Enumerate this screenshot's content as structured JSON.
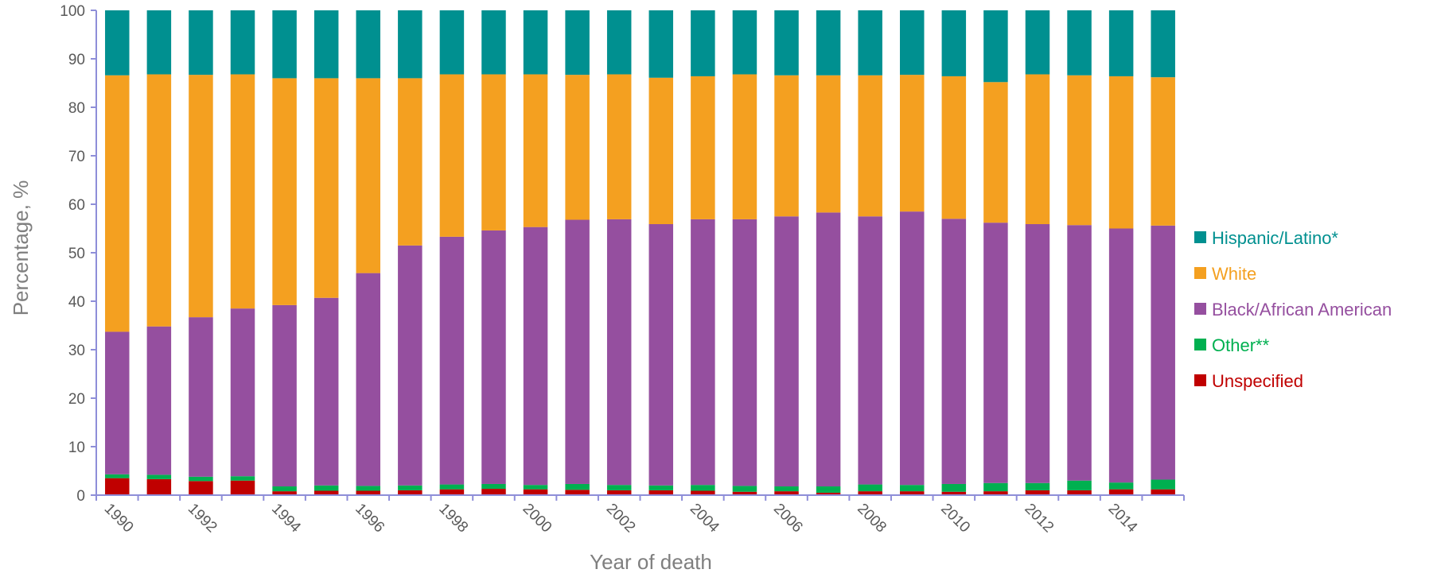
{
  "chart_data": {
    "type": "bar",
    "stacked": true,
    "xlabel": "Year of death",
    "ylabel": "Percentage, %",
    "ylim": [
      0,
      100
    ],
    "yticks": [
      0,
      10,
      20,
      30,
      40,
      50,
      60,
      70,
      80,
      90,
      100
    ],
    "grid": false,
    "legend_position": "right",
    "x_tick_labels": [
      "1990",
      "1992",
      "1994",
      "1996",
      "1998",
      "2000",
      "2002",
      "2004",
      "2006",
      "2008",
      "2010",
      "2012",
      "2014"
    ],
    "categories": [
      "1990",
      "1991",
      "1992",
      "1993",
      "1994",
      "1995",
      "1996",
      "1997",
      "1998",
      "1999",
      "2000",
      "2001",
      "2002",
      "2003",
      "2004",
      "2005",
      "2006",
      "2007",
      "2008",
      "2009",
      "2010",
      "2011",
      "2012",
      "2013",
      "2014",
      "2015"
    ],
    "series": [
      {
        "name": "Unspecified",
        "color": "#c00000",
        "values": [
          3.5,
          3.3,
          2.9,
          3.0,
          0.8,
          0.9,
          0.9,
          1.0,
          1.2,
          1.3,
          1.2,
          1.1,
          1.0,
          1.0,
          0.9,
          0.7,
          0.8,
          0.5,
          0.8,
          0.8,
          0.7,
          0.8,
          1.0,
          1.0,
          1.2,
          1.2
        ]
      },
      {
        "name": "Other**",
        "color": "#00b050",
        "values": [
          0.8,
          0.9,
          0.9,
          0.9,
          1.0,
          1.1,
          1.0,
          1.0,
          1.0,
          1.0,
          0.9,
          1.2,
          1.1,
          1.0,
          1.2,
          1.2,
          1.0,
          1.3,
          1.4,
          1.3,
          1.6,
          1.7,
          1.5,
          2.0,
          1.4,
          2.0
        ]
      },
      {
        "name": "Black/African American",
        "color": "#954f9f",
        "values": [
          29.4,
          30.6,
          32.9,
          34.6,
          37.4,
          38.7,
          43.9,
          49.5,
          51.1,
          52.3,
          53.2,
          54.5,
          54.8,
          53.9,
          54.8,
          55.0,
          55.7,
          56.5,
          55.3,
          56.4,
          54.7,
          53.7,
          53.4,
          52.7,
          52.4,
          52.4
        ]
      },
      {
        "name": "White",
        "color": "#f4a020",
        "values": [
          52.9,
          52.0,
          50.0,
          48.3,
          46.8,
          45.3,
          40.2,
          34.5,
          33.5,
          32.2,
          31.5,
          29.9,
          29.9,
          30.2,
          29.5,
          29.9,
          29.1,
          28.3,
          29.1,
          28.2,
          29.4,
          29.0,
          30.9,
          30.9,
          31.4,
          30.6
        ]
      },
      {
        "name": "Hispanic/Latino*",
        "color": "#009090",
        "values": [
          13.4,
          13.2,
          13.3,
          13.2,
          14.0,
          14.0,
          14.0,
          14.0,
          13.2,
          13.2,
          13.2,
          13.3,
          13.2,
          13.9,
          13.6,
          13.2,
          13.4,
          13.4,
          13.4,
          13.3,
          13.6,
          14.8,
          13.2,
          13.4,
          13.6,
          13.8
        ]
      }
    ],
    "legend_order": [
      "Hispanic/Latino*",
      "White",
      "Black/African American",
      "Other**",
      "Unspecified"
    ]
  }
}
